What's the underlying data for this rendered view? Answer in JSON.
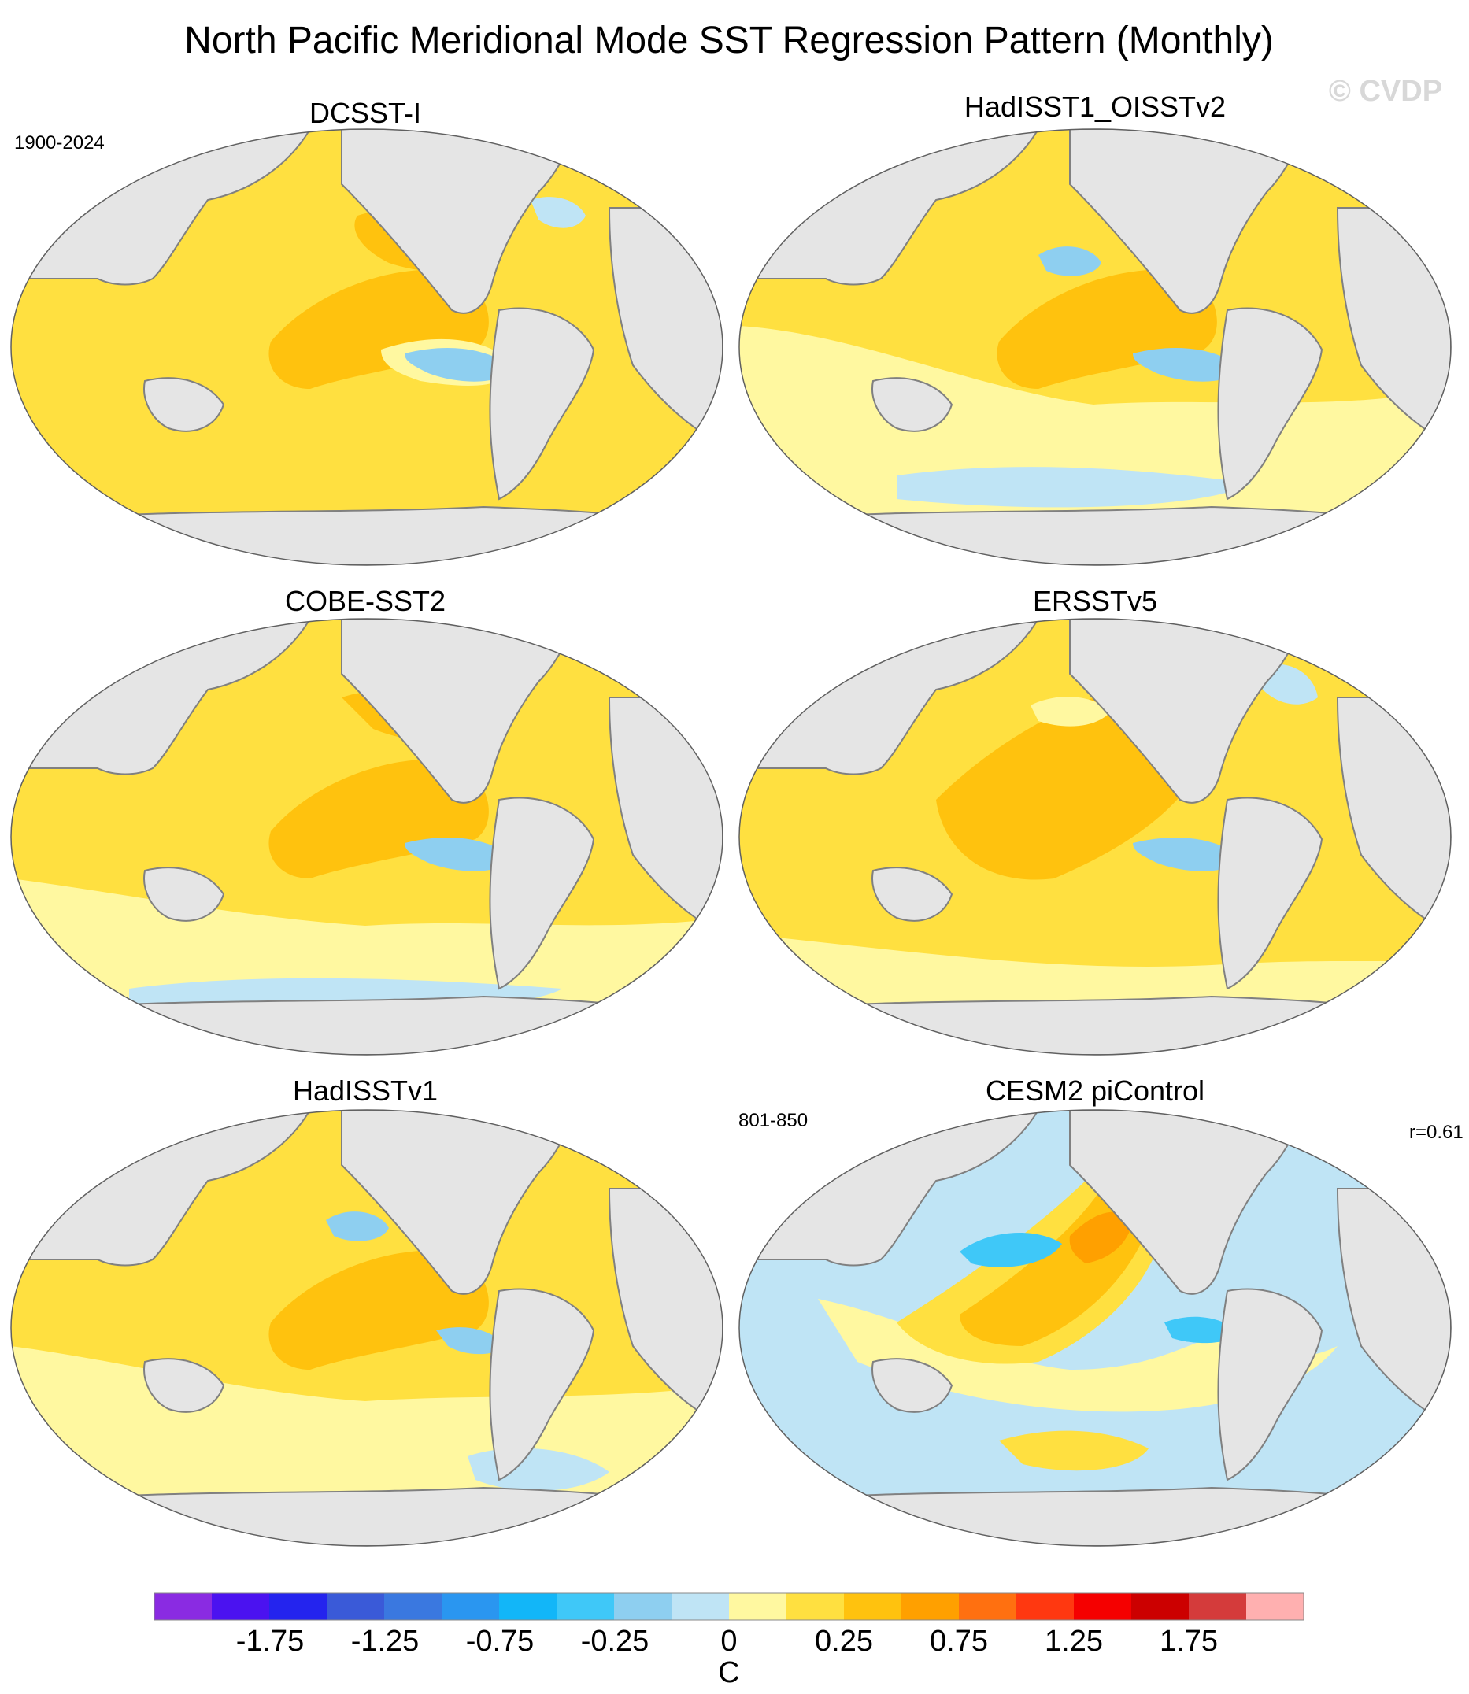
{
  "title": "North Pacific Meridional Mode SST Regression Pattern (Monthly)",
  "watermark": "© CVDP",
  "years_obs": "1900-2024",
  "years_model": "801-850",
  "correlation": "r=0.61",
  "panels": [
    {
      "name": "DCSST-I"
    },
    {
      "name": "HadISST1_OISSTv2"
    },
    {
      "name": "COBE-SST2"
    },
    {
      "name": "ERSSTv5"
    },
    {
      "name": "HadISSTv1"
    },
    {
      "name": "CESM2 piControl"
    }
  ],
  "colorbar": {
    "units": "C",
    "colors": [
      "#8a2be2",
      "#4b12f0",
      "#2424ee",
      "#3a5ad8",
      "#3a78e0",
      "#2a96f0",
      "#12b6f8",
      "#3fc8f8",
      "#8ecff0",
      "#bfe4f5",
      "#fff8a0",
      "#ffe040",
      "#ffc20e",
      "#ffa000",
      "#ff7010",
      "#ff3810",
      "#f50000",
      "#cc0000",
      "#d43b3b",
      "#ffb0b0"
    ],
    "tick_labels": [
      "-1.75",
      "-1.25",
      "-0.75",
      "-0.25",
      "0",
      "0.25",
      "0.75",
      "1.25",
      "1.75"
    ]
  },
  "colors": {
    "land": "#e5e5e5",
    "coast": "#808080",
    "ocean_base": "#ffe040"
  }
}
